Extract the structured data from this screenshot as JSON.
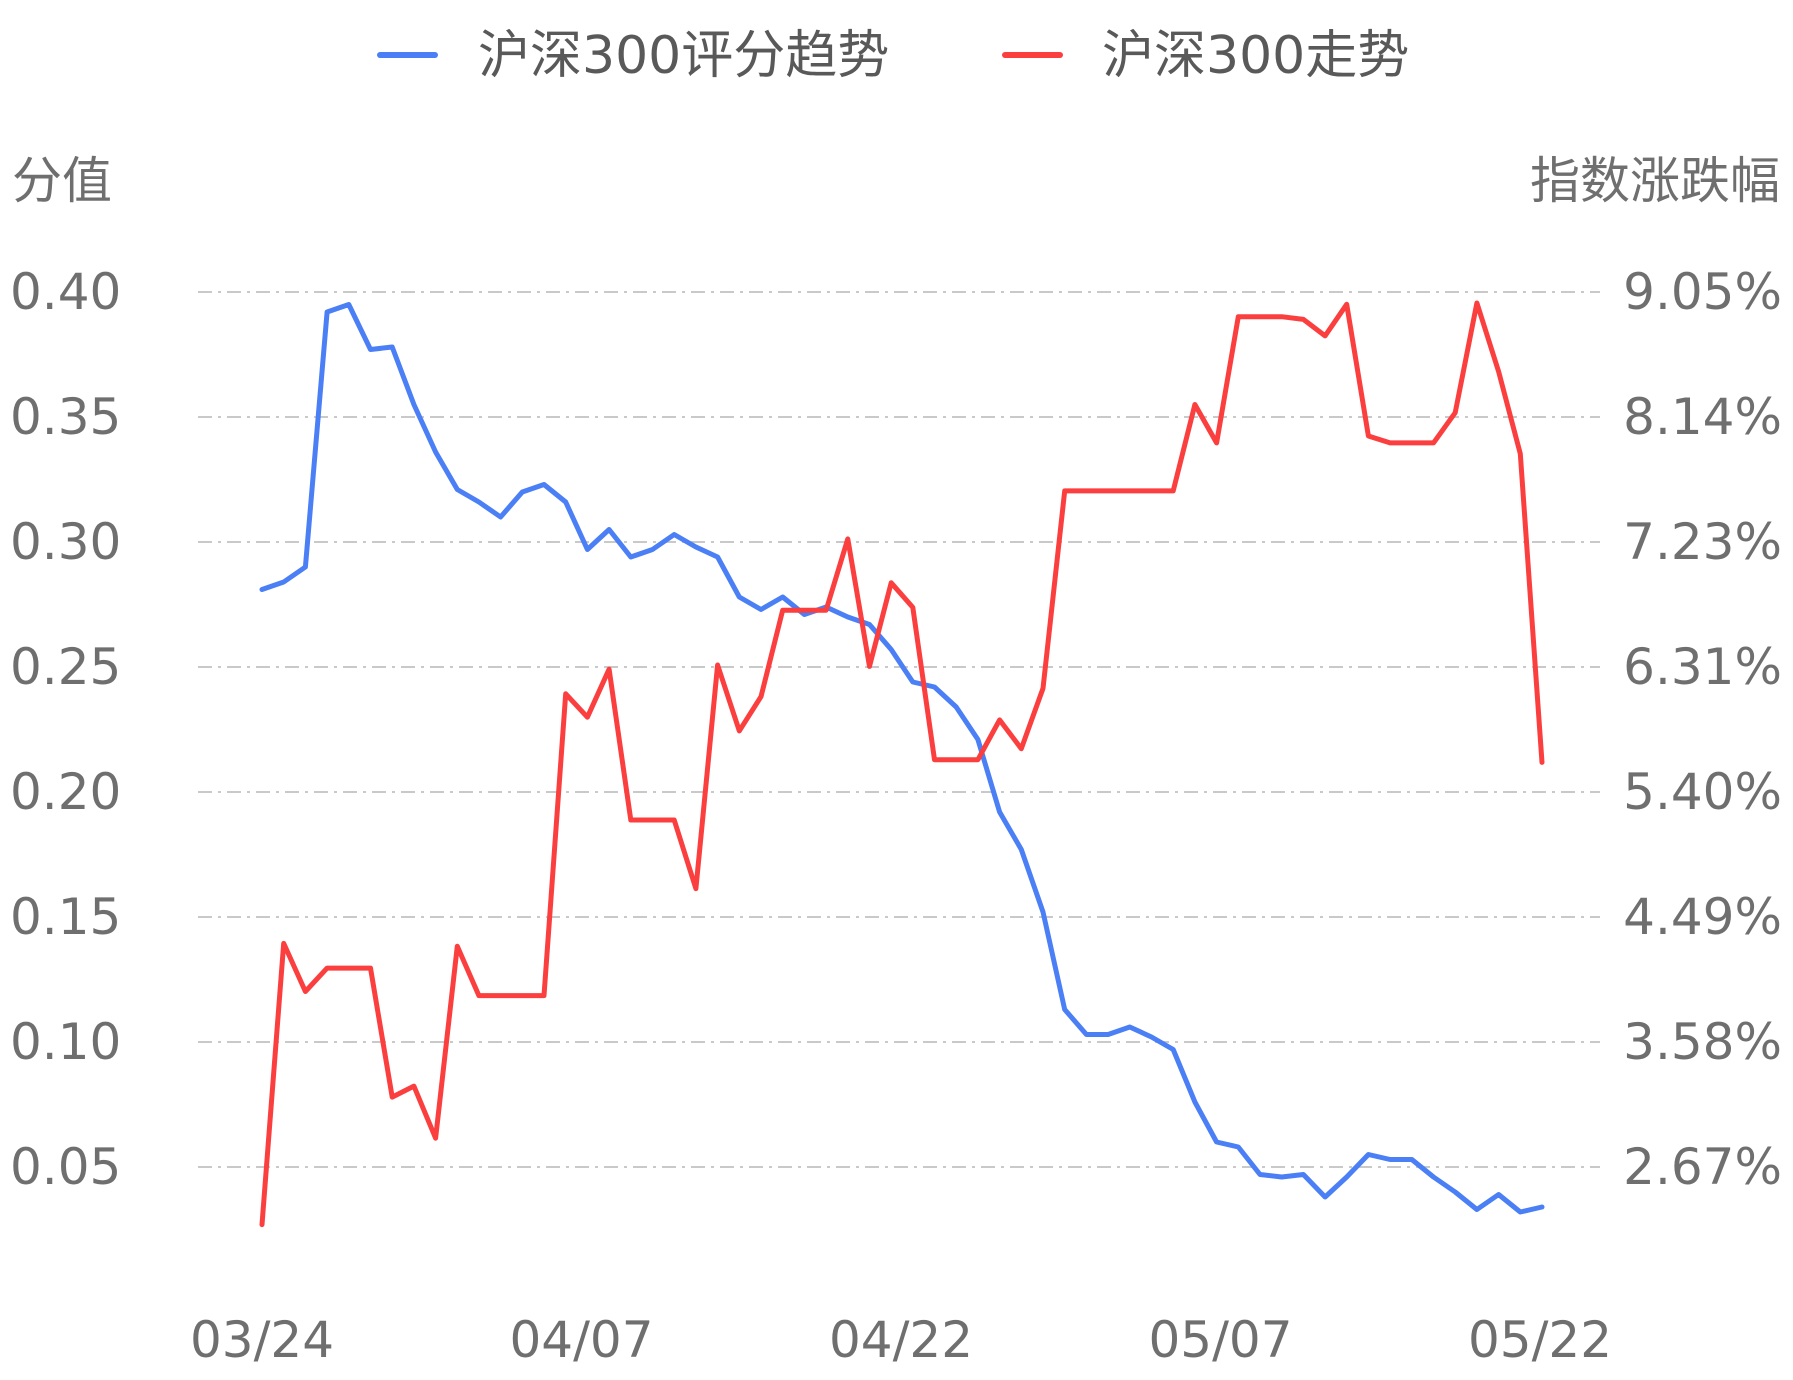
{
  "chart_data": {
    "type": "line",
    "legend_position": "top",
    "grid": true,
    "y_left_title": "分值",
    "y_right_title": "指数涨跌幅",
    "y_left_ticks": [
      "0.40",
      "0.35",
      "0.30",
      "0.25",
      "0.20",
      "0.15",
      "0.10",
      "0.05"
    ],
    "y_right_ticks": [
      "9.05%",
      "8.14%",
      "7.23%",
      "6.31%",
      "5.40%",
      "4.49%",
      "3.58%",
      "2.67%"
    ],
    "x_ticks": [
      "03/24",
      "04/07",
      "04/22",
      "05/07",
      "05/22"
    ],
    "y_left_range": [
      0.05,
      0.4
    ],
    "y_right_range": [
      2.67,
      9.05
    ],
    "series": [
      {
        "name": "沪深300评分趋势",
        "color": "#4b7ff5",
        "axis": "left",
        "values": [
          0.281,
          0.284,
          0.29,
          0.392,
          0.395,
          0.377,
          0.378,
          0.355,
          0.336,
          0.321,
          0.316,
          0.31,
          0.32,
          0.323,
          0.316,
          0.297,
          0.305,
          0.294,
          0.297,
          0.303,
          0.298,
          0.294,
          0.278,
          0.273,
          0.278,
          0.271,
          0.274,
          0.27,
          0.267,
          0.257,
          0.244,
          0.242,
          0.234,
          0.221,
          0.192,
          0.177,
          0.152,
          0.113,
          0.103,
          0.103,
          0.106,
          0.102,
          0.097,
          0.076,
          0.06,
          0.058,
          0.047,
          0.046,
          0.047,
          0.038,
          0.046,
          0.055,
          0.053,
          0.053,
          0.046,
          0.04,
          0.033,
          0.039,
          0.032,
          0.034
        ]
      },
      {
        "name": "沪深300走势",
        "color": "#fb3f3f",
        "axis": "right",
        "values": [
          2.25,
          4.3,
          3.95,
          4.12,
          4.12,
          4.12,
          3.18,
          3.26,
          2.88,
          4.28,
          3.92,
          3.92,
          3.92,
          3.92,
          6.12,
          5.95,
          6.3,
          5.2,
          5.2,
          5.2,
          4.7,
          6.33,
          5.85,
          6.1,
          6.73,
          6.73,
          6.73,
          7.25,
          6.32,
          6.93,
          6.75,
          5.64,
          5.64,
          5.64,
          5.93,
          5.72,
          6.16,
          7.6,
          7.6,
          7.6,
          7.6,
          7.6,
          7.6,
          8.23,
          7.95,
          8.87,
          8.87,
          8.87,
          8.85,
          8.73,
          8.96,
          8.0,
          7.95,
          7.95,
          7.95,
          8.17,
          8.97,
          8.47,
          7.87,
          5.62
        ]
      }
    ]
  }
}
